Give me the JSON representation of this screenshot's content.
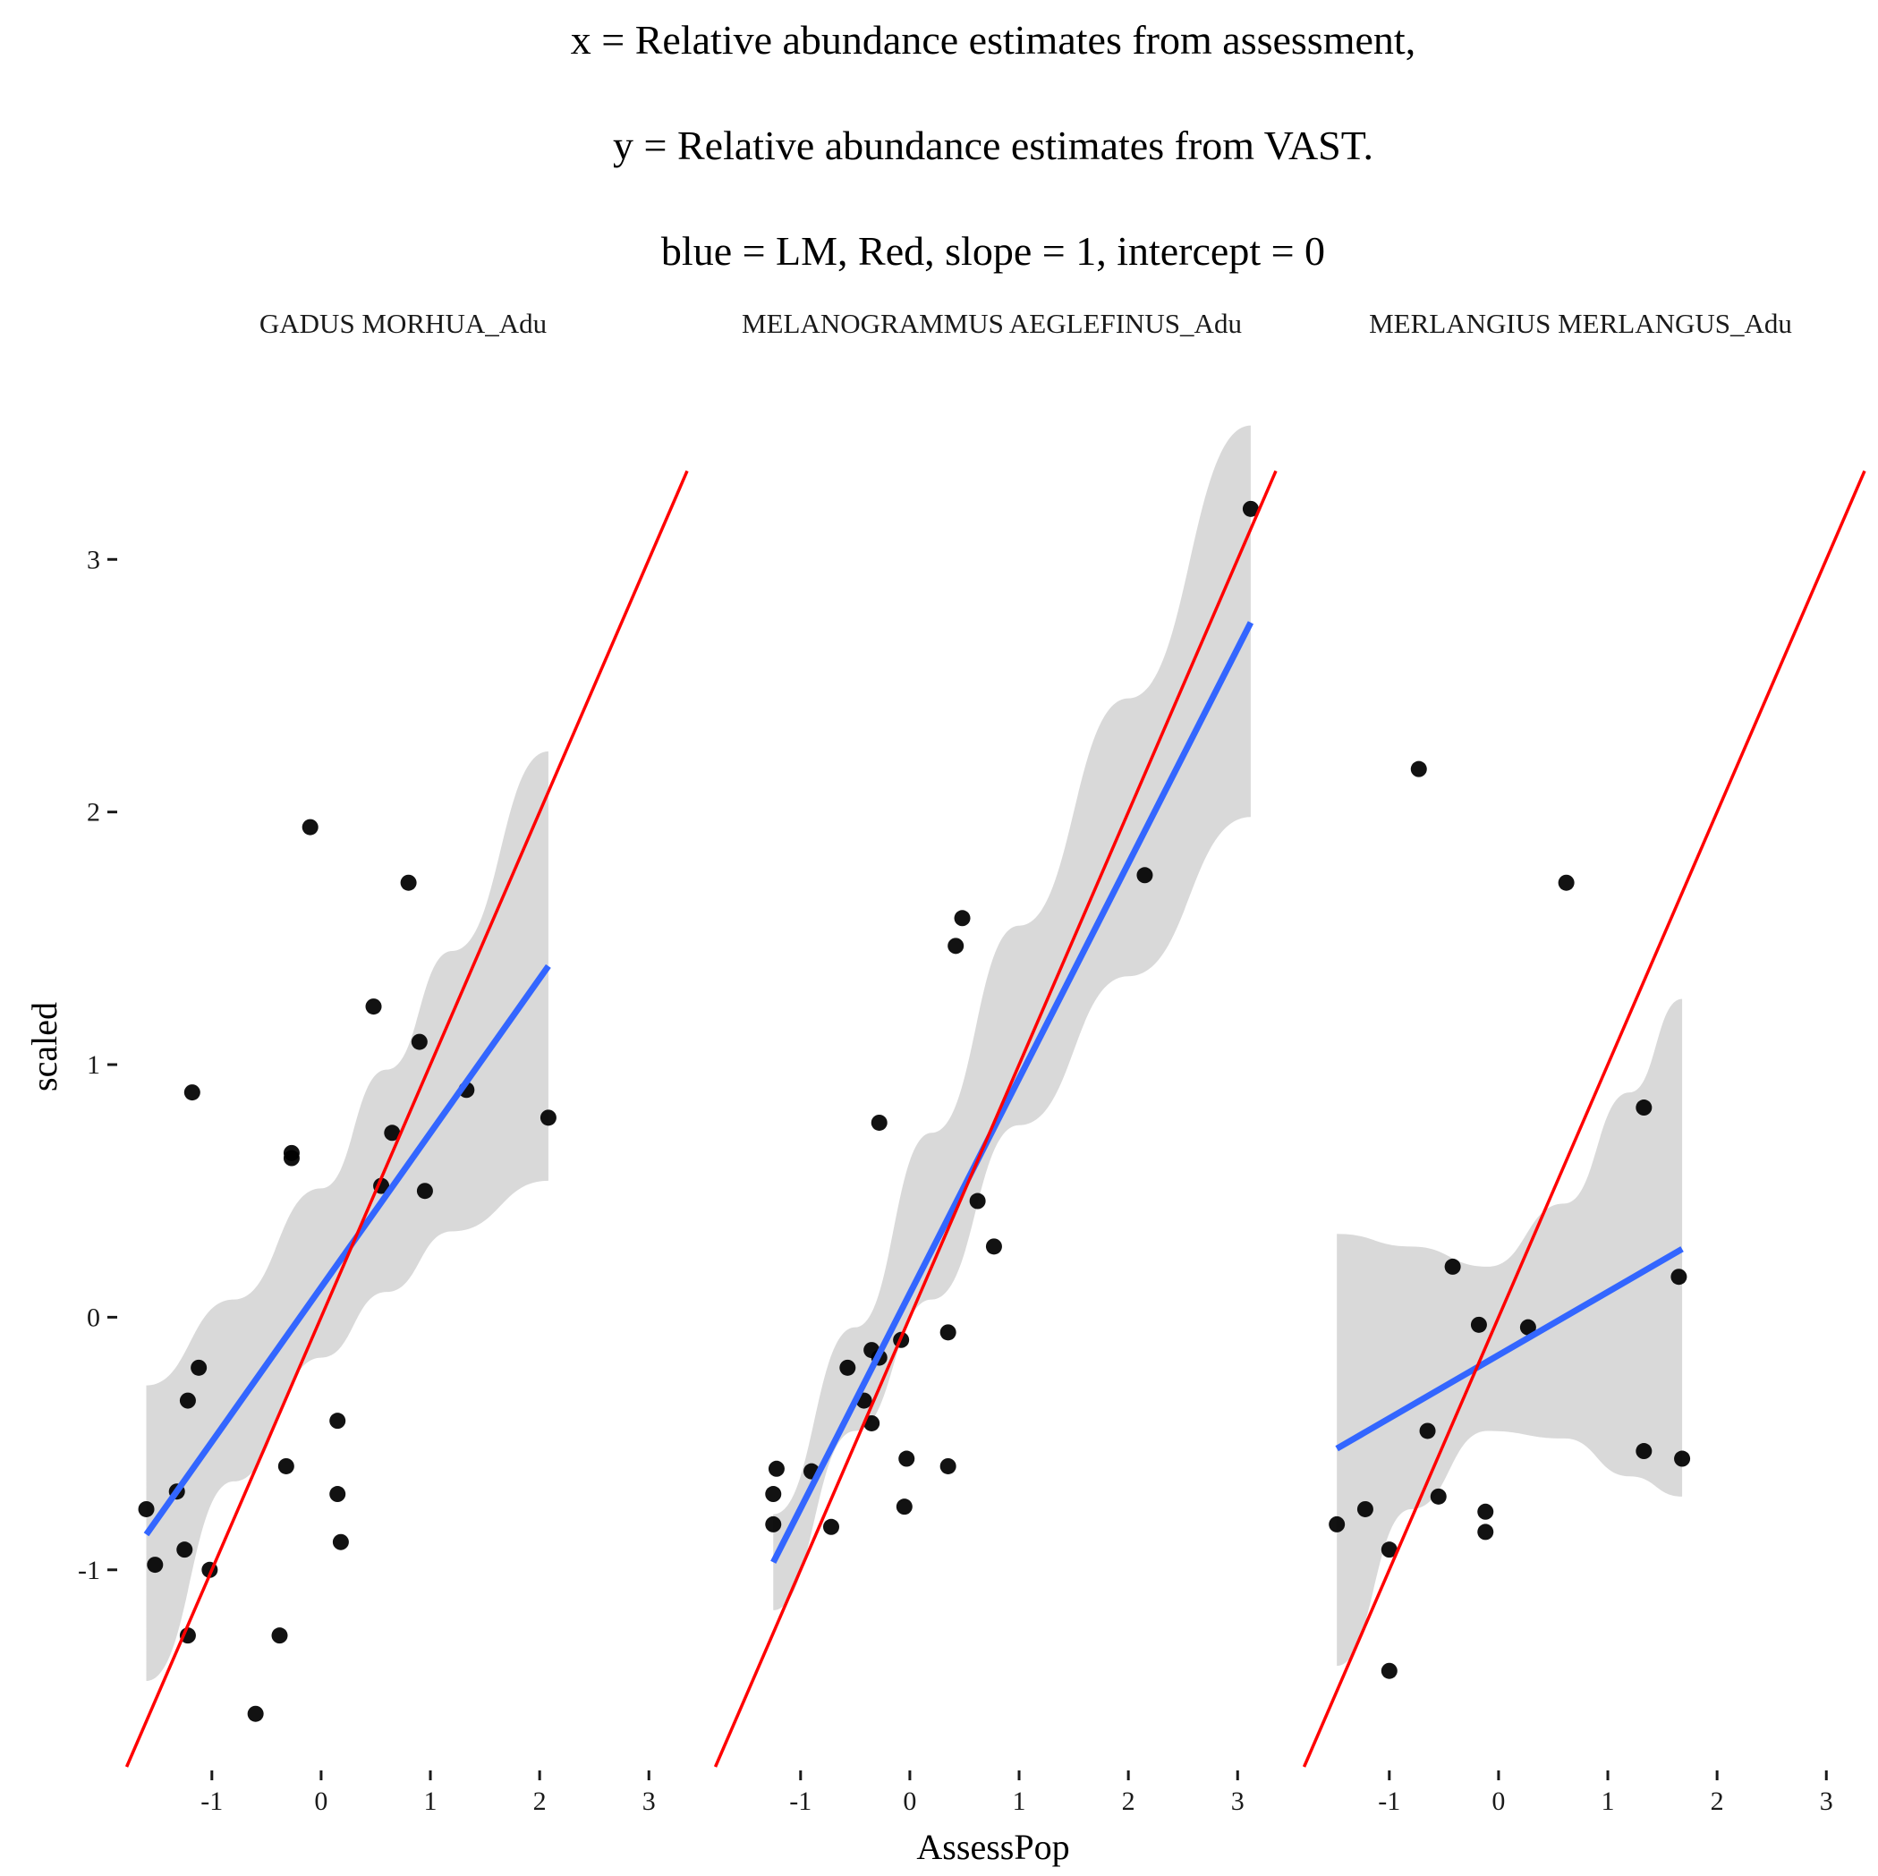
{
  "chart_data": {
    "type": "scatter",
    "title_lines": [
      "x = Relative abundance estimates from assessment,",
      "y = Relative abundance estimates from VAST.",
      "blue = LM, Red, slope = 1, intercept = 0"
    ],
    "xlabel": "AssessPop",
    "ylabel": "scaled",
    "xlim": [
      -1.85,
      3.35
    ],
    "ylim": [
      -1.78,
      3.55
    ],
    "x_ticks": [
      -1,
      0,
      1,
      2,
      3
    ],
    "x_tick_labels": [
      "-1",
      "0",
      "1",
      "2",
      "3"
    ],
    "y_ticks": [
      -1,
      0,
      1,
      2,
      3
    ],
    "y_tick_labels": [
      "-1",
      "0",
      "1",
      "2",
      "3"
    ],
    "grid": false,
    "legend": "none",
    "colors": {
      "points": "#000000",
      "lm_line": "#3366FF",
      "confidence_band": "#d9d9d9",
      "identity_line": "#ff0000"
    },
    "panels": [
      {
        "name": "GADUS MORHUA_Adu",
        "points": [
          [
            -1.6,
            -0.76
          ],
          [
            -1.52,
            -0.98
          ],
          [
            -1.32,
            -0.69
          ],
          [
            -1.25,
            -0.92
          ],
          [
            -1.22,
            -1.26
          ],
          [
            -1.22,
            -0.33
          ],
          [
            -1.18,
            0.89
          ],
          [
            -1.12,
            -0.2
          ],
          [
            -1.02,
            -1.0
          ],
          [
            -0.6,
            -1.57
          ],
          [
            -0.38,
            -1.26
          ],
          [
            -0.32,
            -0.59
          ],
          [
            -0.27,
            0.65
          ],
          [
            -0.27,
            0.63
          ],
          [
            -0.1,
            1.94
          ],
          [
            0.15,
            -0.41
          ],
          [
            0.15,
            -0.7
          ],
          [
            0.18,
            -0.89
          ],
          [
            0.48,
            1.23
          ],
          [
            0.55,
            0.52
          ],
          [
            0.65,
            0.73
          ],
          [
            0.8,
            1.72
          ],
          [
            0.9,
            1.09
          ],
          [
            0.95,
            0.5
          ],
          [
            1.33,
            0.9
          ],
          [
            2.08,
            0.79
          ]
        ],
        "lm": {
          "x0": -1.6,
          "y0": -0.86,
          "x1": 2.08,
          "y1": 1.39
        },
        "band": {
          "x": [
            -1.6,
            -0.8,
            0.0,
            0.6,
            1.2,
            2.08
          ],
          "upper": [
            -0.27,
            0.07,
            0.51,
            0.98,
            1.45,
            2.24
          ],
          "lower": [
            -1.44,
            -0.65,
            -0.16,
            0.1,
            0.34,
            0.54
          ]
        },
        "identity": {
          "x0": -1.78,
          "y0": -1.78,
          "x1": 3.35,
          "y1": 3.35
        }
      },
      {
        "name": "MELANOGRAMMUS AEGLEFINUS_Adu",
        "points": [
          [
            -1.25,
            -0.7
          ],
          [
            -1.25,
            -0.82
          ],
          [
            -1.22,
            -0.6
          ],
          [
            -0.9,
            -0.61
          ],
          [
            -0.72,
            -0.83
          ],
          [
            -0.57,
            -0.2
          ],
          [
            -0.42,
            -0.33
          ],
          [
            -0.35,
            -0.13
          ],
          [
            -0.35,
            -0.42
          ],
          [
            -0.28,
            -0.16
          ],
          [
            -0.28,
            0.77
          ],
          [
            -0.08,
            -0.09
          ],
          [
            -0.05,
            -0.75
          ],
          [
            -0.03,
            -0.56
          ],
          [
            0.35,
            -0.06
          ],
          [
            0.35,
            -0.59
          ],
          [
            0.42,
            1.47
          ],
          [
            0.48,
            1.58
          ],
          [
            0.62,
            0.46
          ],
          [
            0.77,
            0.28
          ],
          [
            2.15,
            1.75
          ],
          [
            3.12,
            3.2
          ]
        ],
        "lm": {
          "x0": -1.25,
          "y0": -0.97,
          "x1": 3.12,
          "y1": 2.75
        },
        "band": {
          "x": [
            -1.25,
            -0.5,
            0.2,
            1.0,
            2.0,
            3.12
          ],
          "upper": [
            -0.78,
            -0.04,
            0.73,
            1.55,
            2.45,
            3.53
          ],
          "lower": [
            -1.16,
            -0.45,
            0.07,
            0.76,
            1.35,
            1.98
          ]
        },
        "identity": {
          "x0": -1.78,
          "y0": -1.78,
          "x1": 3.35,
          "y1": 3.35
        }
      },
      {
        "name": "MERLANGIUS MERLANGUS_Adu",
        "points": [
          [
            -1.48,
            -0.82
          ],
          [
            -1.22,
            -0.76
          ],
          [
            -1.0,
            -1.4
          ],
          [
            -1.0,
            -0.92
          ],
          [
            -0.73,
            2.17
          ],
          [
            -0.65,
            -0.45
          ],
          [
            -0.55,
            -0.71
          ],
          [
            -0.42,
            0.2
          ],
          [
            -0.18,
            -0.03
          ],
          [
            -0.12,
            -0.77
          ],
          [
            -0.12,
            -0.85
          ],
          [
            0.27,
            -0.04
          ],
          [
            0.62,
            1.72
          ],
          [
            1.33,
            0.83
          ],
          [
            1.33,
            -0.53
          ],
          [
            1.65,
            0.16
          ],
          [
            1.68,
            -0.56
          ]
        ],
        "lm": {
          "x0": -1.48,
          "y0": -0.52,
          "x1": 1.68,
          "y1": 0.27
        },
        "band": {
          "x": [
            -1.48,
            -0.8,
            -0.1,
            0.6,
            1.2,
            1.68
          ],
          "upper": [
            0.33,
            0.28,
            0.2,
            0.45,
            0.89,
            1.26
          ],
          "lower": [
            -1.38,
            -0.76,
            -0.45,
            -0.48,
            -0.63,
            -0.71
          ]
        },
        "identity": {
          "x0": -1.78,
          "y0": -1.78,
          "x1": 3.35,
          "y1": 3.35
        }
      }
    ]
  }
}
